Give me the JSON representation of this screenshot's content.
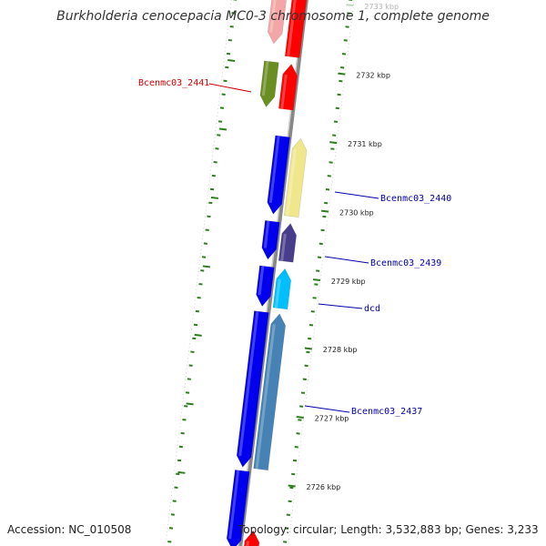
{
  "title": "Burkholderia cenocepacia MC0-3 chromosome 1, complete genome",
  "footer": {
    "accession": "Accession: NC_010508",
    "summary": "Topology: circular; Length: 3,532,883 bp; Genes: 3,233"
  },
  "colors": {
    "backbone": "#888888",
    "tick": "#2e7d1e",
    "label_red": "#cc0000",
    "label_blue": "#0000aa"
  },
  "ticks": [
    {
      "label": "2733 kbp",
      "faded": true
    },
    {
      "label": "2732 kbp"
    },
    {
      "label": "2731 kbp"
    },
    {
      "label": "2730 kbp"
    },
    {
      "label": "2729 kbp"
    },
    {
      "label": "2728 kbp"
    },
    {
      "label": "2727 kbp"
    },
    {
      "label": "2726 kbp"
    }
  ],
  "genes": [
    {
      "name": "Bcenmc03_2441",
      "color": "#cc0000"
    },
    {
      "name": "Bcenmc03_2440",
      "color": "#0000aa"
    },
    {
      "name": "Bcenmc03_2439",
      "color": "#0000aa"
    },
    {
      "name": "dcd",
      "color": "#0000aa"
    },
    {
      "name": "Bcenmc03_2437",
      "color": "#0000aa"
    }
  ],
  "features": [
    {
      "id": "red-top-left",
      "color": "#f4a6a6",
      "strand": "reverse"
    },
    {
      "id": "red-top-right",
      "color": "#ff0000",
      "strand": "forward"
    },
    {
      "id": "olive",
      "color": "#6b8e23",
      "strand": "reverse"
    },
    {
      "id": "red-small",
      "color": "#ff0000",
      "strand": "forward"
    },
    {
      "id": "blue-large",
      "color": "#0000ee",
      "strand": "reverse"
    },
    {
      "id": "khaki",
      "color": "#f0e68c",
      "strand": "forward"
    },
    {
      "id": "blue-medium",
      "color": "#0000ee",
      "strand": "reverse"
    },
    {
      "id": "slate-blue",
      "color": "#483d8b",
      "strand": "forward"
    },
    {
      "id": "blue-small",
      "color": "#0000ee",
      "strand": "reverse"
    },
    {
      "id": "deep-sky-blue",
      "color": "#00bfff",
      "strand": "forward"
    },
    {
      "id": "blue-long",
      "color": "#0000ee",
      "strand": "reverse"
    },
    {
      "id": "steel-blue",
      "color": "#4682b4",
      "strand": "forward"
    },
    {
      "id": "blue-bottom",
      "color": "#0000ee",
      "strand": "reverse"
    },
    {
      "id": "red-bottom",
      "color": "#ff0000",
      "strand": "forward"
    }
  ]
}
